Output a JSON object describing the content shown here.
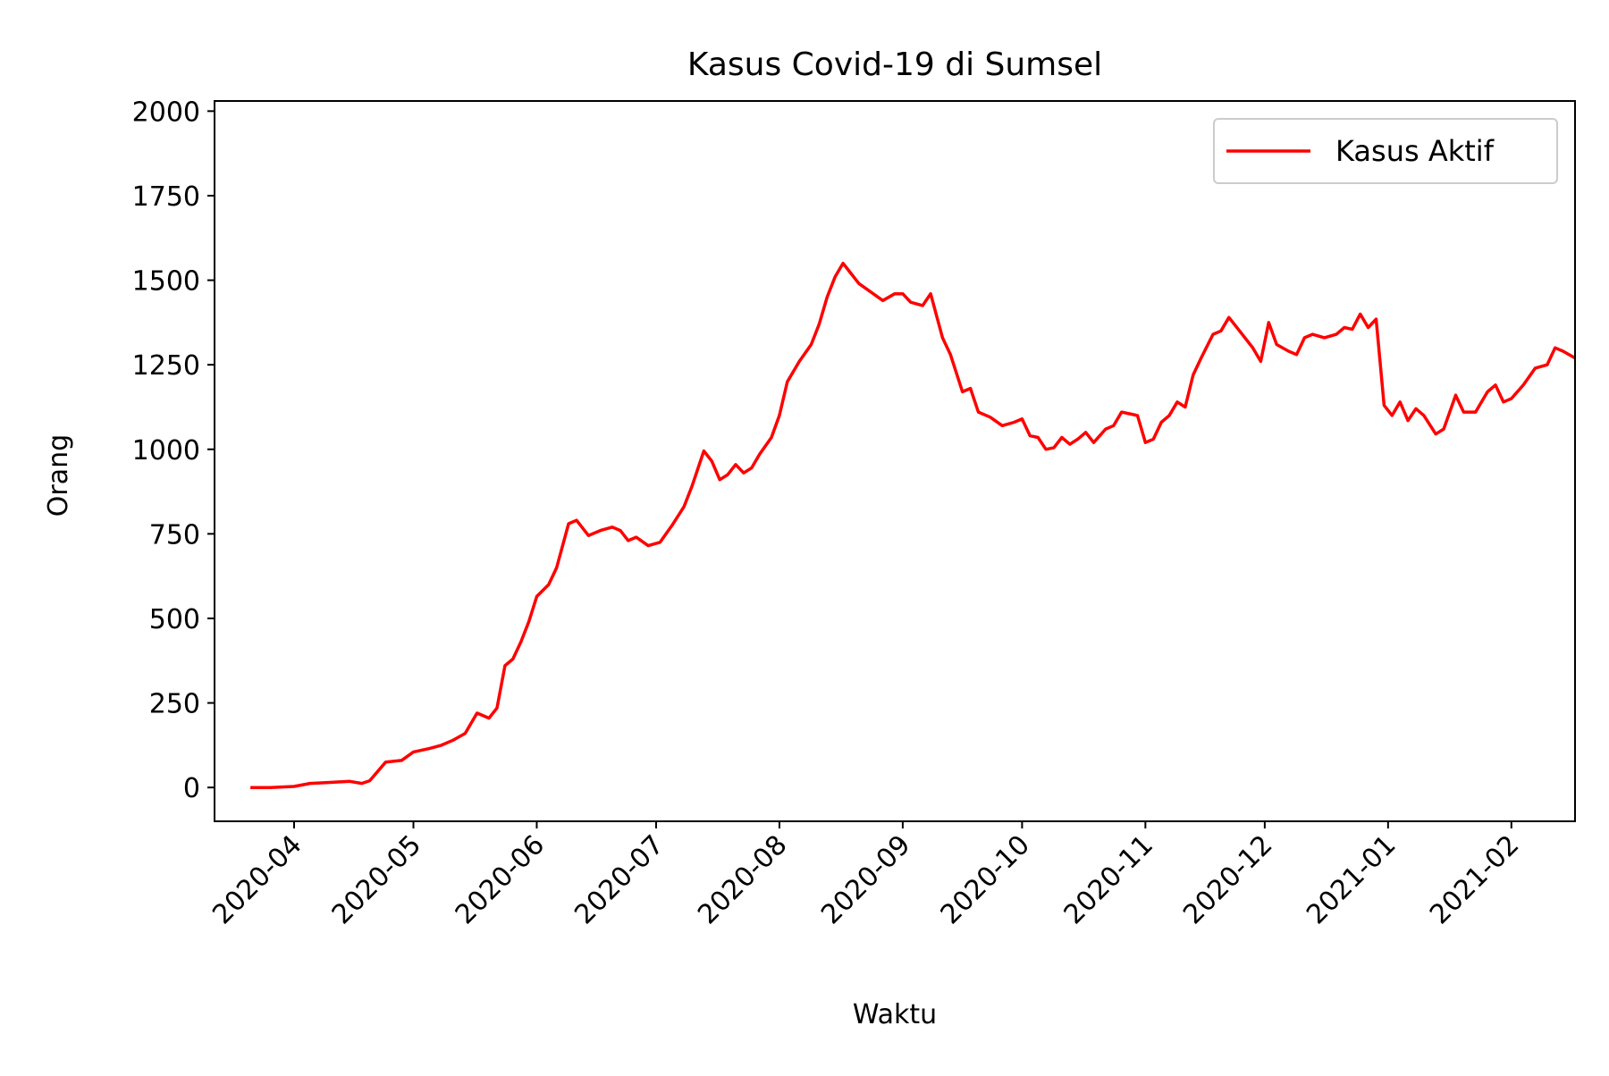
{
  "chart_data": {
    "type": "line",
    "title": "Kasus Covid-19 di Sumsel",
    "xlabel": "Waktu",
    "ylabel": "Orang",
    "xlim": [
      "2020-03-12",
      "2021-02-17"
    ],
    "ylim": [
      -100,
      2030
    ],
    "grid": false,
    "legend_position": "top-right",
    "x_ticks": [
      "2020-04",
      "2020-05",
      "2020-06",
      "2020-07",
      "2020-08",
      "2020-09",
      "2020-10",
      "2020-11",
      "2020-12",
      "2021-01",
      "2021-02"
    ],
    "y_ticks": [
      0,
      250,
      500,
      750,
      1000,
      1250,
      1500,
      1750,
      2000
    ],
    "series": [
      {
        "name": "Kasus Aktif",
        "color": "#ff0000",
        "points": [
          [
            "2020-03-21",
            0
          ],
          [
            "2020-03-26",
            0
          ],
          [
            "2020-04-01",
            3
          ],
          [
            "2020-04-05",
            12
          ],
          [
            "2020-04-10",
            15
          ],
          [
            "2020-04-15",
            18
          ],
          [
            "2020-04-18",
            12
          ],
          [
            "2020-04-20",
            20
          ],
          [
            "2020-04-24",
            75
          ],
          [
            "2020-04-28",
            80
          ],
          [
            "2020-05-01",
            105
          ],
          [
            "2020-05-05",
            115
          ],
          [
            "2020-05-08",
            125
          ],
          [
            "2020-05-11",
            140
          ],
          [
            "2020-05-14",
            160
          ],
          [
            "2020-05-17",
            220
          ],
          [
            "2020-05-20",
            205
          ],
          [
            "2020-05-22",
            235
          ],
          [
            "2020-05-24",
            360
          ],
          [
            "2020-05-26",
            380
          ],
          [
            "2020-05-28",
            430
          ],
          [
            "2020-05-30",
            490
          ],
          [
            "2020-06-01",
            565
          ],
          [
            "2020-06-04",
            600
          ],
          [
            "2020-06-06",
            650
          ],
          [
            "2020-06-09",
            780
          ],
          [
            "2020-06-11",
            790
          ],
          [
            "2020-06-14",
            745
          ],
          [
            "2020-06-17",
            760
          ],
          [
            "2020-06-20",
            770
          ],
          [
            "2020-06-22",
            760
          ],
          [
            "2020-06-24",
            730
          ],
          [
            "2020-06-26",
            740
          ],
          [
            "2020-06-29",
            715
          ],
          [
            "2020-07-02",
            725
          ],
          [
            "2020-07-05",
            775
          ],
          [
            "2020-07-08",
            830
          ],
          [
            "2020-07-10",
            890
          ],
          [
            "2020-07-13",
            995
          ],
          [
            "2020-07-15",
            965
          ],
          [
            "2020-07-17",
            910
          ],
          [
            "2020-07-19",
            925
          ],
          [
            "2020-07-21",
            955
          ],
          [
            "2020-07-23",
            930
          ],
          [
            "2020-07-25",
            945
          ],
          [
            "2020-07-27",
            985
          ],
          [
            "2020-07-30",
            1035
          ],
          [
            "2020-08-01",
            1100
          ],
          [
            "2020-08-03",
            1200
          ],
          [
            "2020-08-06",
            1260
          ],
          [
            "2020-08-09",
            1310
          ],
          [
            "2020-08-11",
            1370
          ],
          [
            "2020-08-13",
            1450
          ],
          [
            "2020-08-15",
            1510
          ],
          [
            "2020-08-17",
            1550
          ],
          [
            "2020-08-19",
            1520
          ],
          [
            "2020-08-21",
            1490
          ],
          [
            "2020-08-24",
            1465
          ],
          [
            "2020-08-27",
            1440
          ],
          [
            "2020-08-30",
            1460
          ],
          [
            "2020-09-01",
            1460
          ],
          [
            "2020-09-03",
            1435
          ],
          [
            "2020-09-06",
            1425
          ],
          [
            "2020-09-08",
            1460
          ],
          [
            "2020-09-11",
            1330
          ],
          [
            "2020-09-13",
            1280
          ],
          [
            "2020-09-16",
            1170
          ],
          [
            "2020-09-18",
            1180
          ],
          [
            "2020-09-20",
            1110
          ],
          [
            "2020-09-23",
            1095
          ],
          [
            "2020-09-26",
            1070
          ],
          [
            "2020-09-29",
            1080
          ],
          [
            "2020-10-01",
            1090
          ],
          [
            "2020-10-03",
            1040
          ],
          [
            "2020-10-05",
            1035
          ],
          [
            "2020-10-07",
            1000
          ],
          [
            "2020-10-09",
            1005
          ],
          [
            "2020-10-11",
            1035
          ],
          [
            "2020-10-13",
            1015
          ],
          [
            "2020-10-15",
            1030
          ],
          [
            "2020-10-17",
            1050
          ],
          [
            "2020-10-19",
            1020
          ],
          [
            "2020-10-22",
            1060
          ],
          [
            "2020-10-24",
            1070
          ],
          [
            "2020-10-26",
            1110
          ],
          [
            "2020-10-28",
            1105
          ],
          [
            "2020-10-30",
            1100
          ],
          [
            "2020-11-01",
            1020
          ],
          [
            "2020-11-03",
            1030
          ],
          [
            "2020-11-05",
            1080
          ],
          [
            "2020-11-07",
            1100
          ],
          [
            "2020-11-09",
            1140
          ],
          [
            "2020-11-11",
            1125
          ],
          [
            "2020-11-13",
            1220
          ],
          [
            "2020-11-15",
            1270
          ],
          [
            "2020-11-18",
            1340
          ],
          [
            "2020-11-20",
            1350
          ],
          [
            "2020-11-22",
            1390
          ],
          [
            "2020-11-25",
            1345
          ],
          [
            "2020-11-28",
            1300
          ],
          [
            "2020-11-30",
            1260
          ],
          [
            "2020-12-02",
            1375
          ],
          [
            "2020-12-04",
            1310
          ],
          [
            "2020-12-07",
            1290
          ],
          [
            "2020-12-09",
            1280
          ],
          [
            "2020-12-11",
            1330
          ],
          [
            "2020-12-13",
            1340
          ],
          [
            "2020-12-16",
            1330
          ],
          [
            "2020-12-19",
            1340
          ],
          [
            "2020-12-21",
            1360
          ],
          [
            "2020-12-23",
            1355
          ],
          [
            "2020-12-25",
            1400
          ],
          [
            "2020-12-27",
            1360
          ],
          [
            "2020-12-29",
            1385
          ],
          [
            "2020-12-31",
            1130
          ],
          [
            "2021-01-02",
            1100
          ],
          [
            "2021-01-04",
            1140
          ],
          [
            "2021-01-06",
            1085
          ],
          [
            "2021-01-08",
            1120
          ],
          [
            "2021-01-10",
            1100
          ],
          [
            "2021-01-13",
            1045
          ],
          [
            "2021-01-15",
            1060
          ],
          [
            "2021-01-18",
            1160
          ],
          [
            "2021-01-20",
            1110
          ],
          [
            "2021-01-23",
            1110
          ],
          [
            "2021-01-26",
            1170
          ],
          [
            "2021-01-28",
            1190
          ],
          [
            "2021-01-30",
            1140
          ],
          [
            "2021-02-01",
            1150
          ],
          [
            "2021-02-04",
            1190
          ],
          [
            "2021-02-07",
            1240
          ],
          [
            "2021-02-10",
            1250
          ],
          [
            "2021-02-12",
            1300
          ],
          [
            "2021-02-14",
            1290
          ],
          [
            "2021-02-17",
            1270
          ]
        ]
      }
    ]
  }
}
